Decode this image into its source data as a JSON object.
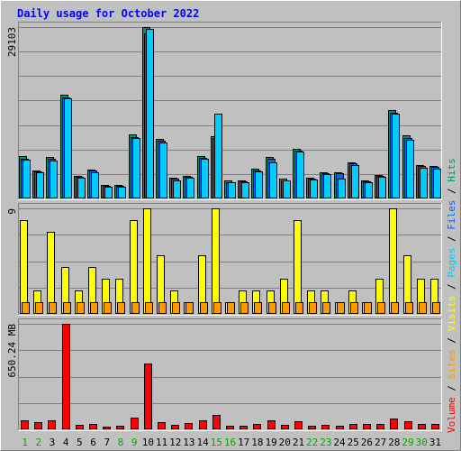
{
  "chart_data": {
    "type": "bar",
    "title": "Daily usage for October 2022",
    "categories": [
      "1",
      "2",
      "3",
      "4",
      "5",
      "6",
      "7",
      "8",
      "9",
      "10",
      "11",
      "12",
      "13",
      "14",
      "15",
      "16",
      "17",
      "18",
      "19",
      "20",
      "21",
      "22",
      "23",
      "24",
      "25",
      "26",
      "27",
      "28",
      "29",
      "30",
      "31"
    ],
    "weekend_days": [
      "1",
      "2",
      "8",
      "9",
      "15",
      "16",
      "22",
      "23",
      "29",
      "30"
    ],
    "panels": [
      {
        "id": "hits",
        "max_label": "29103",
        "ylim": [
          0,
          29103
        ],
        "series": [
          {
            "name": "Hits",
            "color": "#009966",
            "values": [
              7200,
              4800,
              7000,
              17600,
              3800,
              4900,
              2300,
              2300,
              10800,
              29103,
              10100,
              3500,
              3900,
              7200,
              10600,
              3000,
              3100,
              5000,
              7100,
              3300,
              8400,
              3500,
              4500,
              4500,
              6200,
              3100,
              4000,
              15000,
              10700,
              5700,
              5500
            ]
          },
          {
            "name": "Files",
            "color": "#0066ff",
            "values": [
              6800,
              4600,
              6800,
              17200,
              3600,
              4700,
              2100,
              2100,
              10400,
              28000,
              9800,
              3300,
              3700,
              6900,
              10300,
              2800,
              2900,
              4800,
              6700,
              3100,
              8100,
              3300,
              4300,
              4300,
              6000,
              2900,
              3800,
              14500,
              10300,
              5500,
              5300
            ]
          },
          {
            "name": "Pages",
            "color": "#00ccff",
            "values": [
              6600,
              4400,
              6500,
              17000,
              3500,
              4500,
              2000,
              2000,
              10200,
              28800,
              9500,
              3100,
              3500,
              6800,
              14400,
              2700,
              2800,
              4600,
              6200,
              3000,
              7900,
              3200,
              4100,
              3400,
              5700,
              2700,
              3600,
              14400,
              9900,
              5200,
              5100
            ]
          }
        ]
      },
      {
        "id": "visits",
        "max_label": "9",
        "ylim": [
          0,
          9
        ],
        "series": [
          {
            "name": "Visits",
            "color": "#ffff00",
            "values": [
              8,
              2,
              7,
              4,
              2,
              4,
              3,
              3,
              8,
              9,
              5,
              2,
              1,
              5,
              9,
              1,
              2,
              2,
              2,
              3,
              8,
              2,
              2,
              1,
              2,
              1,
              3,
              9,
              5,
              3,
              3
            ]
          },
          {
            "name": "Sites",
            "color": "#ff9900",
            "values": [
              1,
              1,
              1,
              1,
              1,
              1,
              1,
              1,
              1,
              1,
              1,
              1,
              1,
              1,
              1,
              1,
              1,
              1,
              1,
              1,
              1,
              1,
              1,
              1,
              1,
              1,
              1,
              1,
              1,
              1,
              1
            ]
          }
        ]
      },
      {
        "id": "volume",
        "max_label": "650.24 MB",
        "ylim": [
          0,
          650.24
        ],
        "series": [
          {
            "name": "Volume",
            "color": "#ff0000",
            "values": [
              53,
              45,
              53,
              650.24,
              28,
              32,
              19,
              25,
              70,
              405,
              45,
              26,
              38,
              55,
              88,
              24,
              24,
              33,
              55,
              29,
              50,
              23,
              26,
              25,
              35,
              32,
              32,
              66,
              50,
              36,
              34
            ]
          }
        ]
      }
    ],
    "legend": {
      "placement": "right-vertical",
      "items": [
        {
          "label": "Volume",
          "color": "#ff0000"
        },
        {
          "label": "Sites",
          "color": "#ff9900"
        },
        {
          "label": "Visits",
          "color": "#ffff00"
        },
        {
          "label": "Pages",
          "color": "#00ccff"
        },
        {
          "label": "Files",
          "color": "#0066ff"
        },
        {
          "label": "Hits",
          "color": "#009966"
        }
      ],
      "separator": "/"
    },
    "grid": true,
    "colors": {
      "background": "#c0c0c0",
      "title": "#0000ff",
      "axis_label": "#000000",
      "weekend_label": "#00aa00",
      "grid": "#808080"
    }
  }
}
